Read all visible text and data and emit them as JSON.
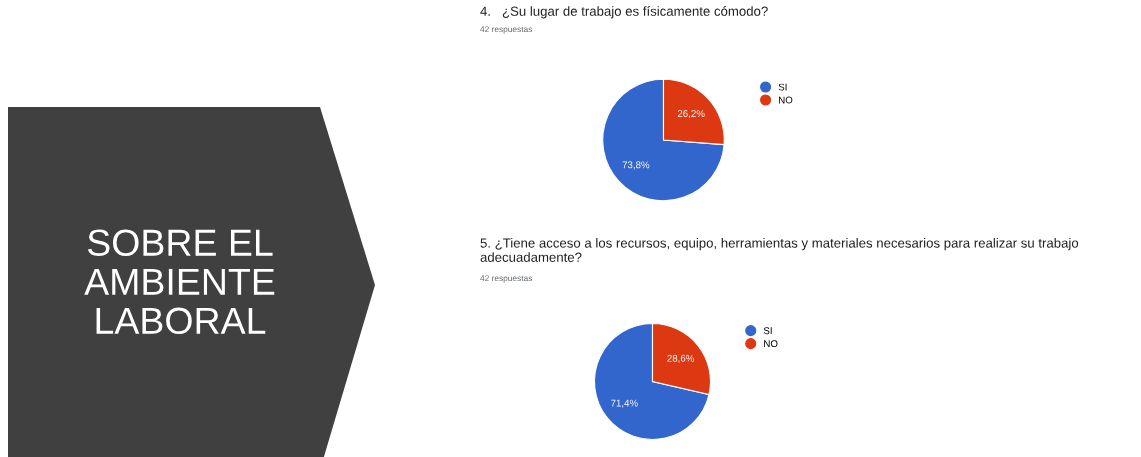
{
  "chart_data": [
    {
      "type": "other",
      "title": "SOBRE EL\nAMBIENTE\nLABORAL"
    },
    {
      "type": "pie",
      "title": "4.   ¿Su lugar de trabajo es físicamente cómodo?",
      "subtitle": "42 respuestas",
      "categories": [
        "SI",
        "NO"
      ],
      "values": [
        73.8,
        26.2
      ],
      "value_labels": [
        "73,8%",
        "26,2%"
      ],
      "colors": [
        "#3366cc",
        "#dc3912"
      ],
      "legend": "right",
      "marker": "circle"
    },
    {
      "type": "pie",
      "title": "5. ¿Tiene acceso a los recursos, equipo, herramientas y materiales necesarios para realizar su trabajo adecuadamente?",
      "subtitle": "42 respuestas",
      "categories": [
        "SI",
        "NO"
      ],
      "values": [
        71.4,
        28.6
      ],
      "value_labels": [
        "71,4%",
        "28,6%"
      ],
      "colors": [
        "#3366cc",
        "#dc3912"
      ],
      "legend": "right",
      "marker": "circle"
    }
  ]
}
